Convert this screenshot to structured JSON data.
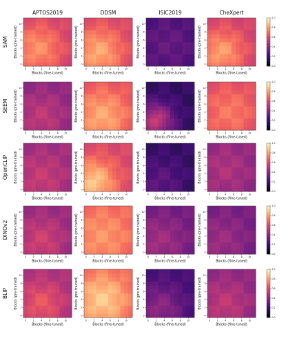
{
  "figure": {
    "column_titles": [
      "APTOS2019",
      "DDSM",
      "ISIC2019",
      "CheXpert"
    ],
    "row_titles": [
      "SAM",
      "SEEM",
      "OpenCLIP",
      "DINOv2",
      "BLIP"
    ],
    "xlabel": "Blocks (fine-tuned)",
    "ylabel": "Blocks (pre-trained)",
    "x_ticks": [
      "0",
      "2",
      "4",
      "6",
      "8",
      "10"
    ],
    "y_ticks": [
      "0",
      "2",
      "4",
      "6",
      "8",
      "10"
    ],
    "colorbar_ticks": [
      "0.0",
      "0.2",
      "0.4",
      "0.6",
      "0.8",
      "1.0"
    ],
    "colormap": "magma",
    "colormap_stops": [
      "#000004",
      "#180f3e",
      "#451077",
      "#721f81",
      "#9f2f7f",
      "#cd4071",
      "#f1605d",
      "#fd9567",
      "#feca8d",
      "#fcfdbf"
    ]
  },
  "chart_data": {
    "type": "heatmap",
    "description": "",
    "grid_size": 12,
    "value_range": [
      0,
      1
    ],
    "panels": [
      {
        "row": "SAM",
        "col": "APTOS2019",
        "base": 0.55,
        "cx": 3,
        "cy": 4,
        "peak": 0.22,
        "spread": 4.5,
        "colorbar": false
      },
      {
        "row": "SAM",
        "col": "DDSM",
        "base": 0.57,
        "cx": 3,
        "cy": 3,
        "peak": 0.25,
        "spread": 4.5,
        "colorbar": false
      },
      {
        "row": "SAM",
        "col": "ISIC2019",
        "base": 0.22,
        "cx": 5,
        "cy": 5,
        "peak": 0.08,
        "spread": 5,
        "colorbar": false
      },
      {
        "row": "SAM",
        "col": "CheXpert",
        "base": 0.56,
        "cx": 3,
        "cy": 3,
        "peak": 0.24,
        "spread": 4,
        "colorbar": true
      },
      {
        "row": "SEEM",
        "col": "APTOS2019",
        "base": 0.4,
        "cx": 4,
        "cy": 3,
        "peak": 0.12,
        "spread": 4,
        "colorbar": false
      },
      {
        "row": "SEEM",
        "col": "DDSM",
        "base": 0.6,
        "cx": 4,
        "cy": 3,
        "peak": 0.22,
        "spread": 5,
        "colorbar": false
      },
      {
        "row": "SEEM",
        "col": "ISIC2019",
        "base": 0.18,
        "cx": 2,
        "cy": 2,
        "peak": 0.35,
        "spread": 3,
        "colorbar": false
      },
      {
        "row": "SEEM",
        "col": "CheXpert",
        "base": 0.58,
        "cx": 5,
        "cy": 4,
        "peak": 0.14,
        "spread": 5,
        "colorbar": true
      },
      {
        "row": "OpenCLIP",
        "col": "APTOS2019",
        "base": 0.44,
        "cx": 4,
        "cy": 3,
        "peak": 0.1,
        "spread": 4,
        "colorbar": false
      },
      {
        "row": "OpenCLIP",
        "col": "DDSM",
        "base": 0.58,
        "cx": 2,
        "cy": 2,
        "peak": 0.3,
        "spread": 4,
        "colorbar": false
      },
      {
        "row": "OpenCLIP",
        "col": "ISIC2019",
        "base": 0.18,
        "cx": 3,
        "cy": 2,
        "peak": 0.1,
        "spread": 4,
        "colorbar": false
      },
      {
        "row": "OpenCLIP",
        "col": "CheXpert",
        "base": 0.4,
        "cx": 4,
        "cy": 5,
        "peak": 0.08,
        "spread": 4,
        "colorbar": true
      },
      {
        "row": "DINOv2",
        "col": "APTOS2019",
        "base": 0.42,
        "cx": 4,
        "cy": 3,
        "peak": 0.14,
        "spread": 4,
        "colorbar": false
      },
      {
        "row": "DINOv2",
        "col": "DDSM",
        "base": 0.66,
        "cx": 4,
        "cy": 4,
        "peak": 0.12,
        "spread": 5,
        "colorbar": false
      },
      {
        "row": "DINOv2",
        "col": "ISIC2019",
        "base": 0.33,
        "cx": 3,
        "cy": 3,
        "peak": 0.12,
        "spread": 4,
        "colorbar": false
      },
      {
        "row": "DINOv2",
        "col": "CheXpert",
        "base": 0.34,
        "cx": 3,
        "cy": 3,
        "peak": 0.1,
        "spread": 4,
        "colorbar": true
      },
      {
        "row": "BLIP",
        "col": "APTOS2019",
        "base": 0.46,
        "cx": 4,
        "cy": 3,
        "peak": 0.18,
        "spread": 4,
        "colorbar": false
      },
      {
        "row": "BLIP",
        "col": "DDSM",
        "base": 0.64,
        "cx": 4,
        "cy": 4,
        "peak": 0.25,
        "spread": 5,
        "colorbar": false
      },
      {
        "row": "BLIP",
        "col": "ISIC2019",
        "base": 0.22,
        "cx": 3,
        "cy": 2,
        "peak": 0.18,
        "spread": 4,
        "colorbar": false
      },
      {
        "row": "BLIP",
        "col": "CheXpert",
        "base": 0.4,
        "cx": 4,
        "cy": 3,
        "peak": 0.12,
        "spread": 4,
        "colorbar": true
      }
    ]
  }
}
